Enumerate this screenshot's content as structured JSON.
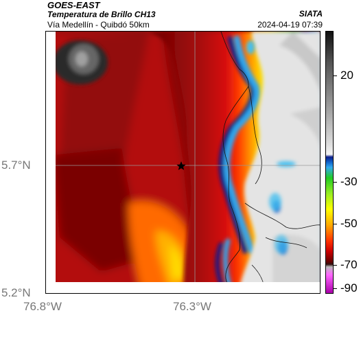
{
  "header": {
    "satellite": "GOES-EAST",
    "product": "Temperatura de Brillo CH13",
    "region": "Vía Medellín - Quibdó 50km",
    "org": "SIATA",
    "datetime": "2024-04-19 07:39"
  },
  "axes": {
    "y_labels": [
      "5.7°N",
      "5.2°N"
    ],
    "x_labels": [
      "76.8°W",
      "76.3°W"
    ]
  },
  "colorbar": {
    "labels": [
      "20",
      "-30",
      "-50",
      "-70",
      "-90"
    ]
  },
  "marker": {
    "icon": "star-icon",
    "label": ""
  }
}
